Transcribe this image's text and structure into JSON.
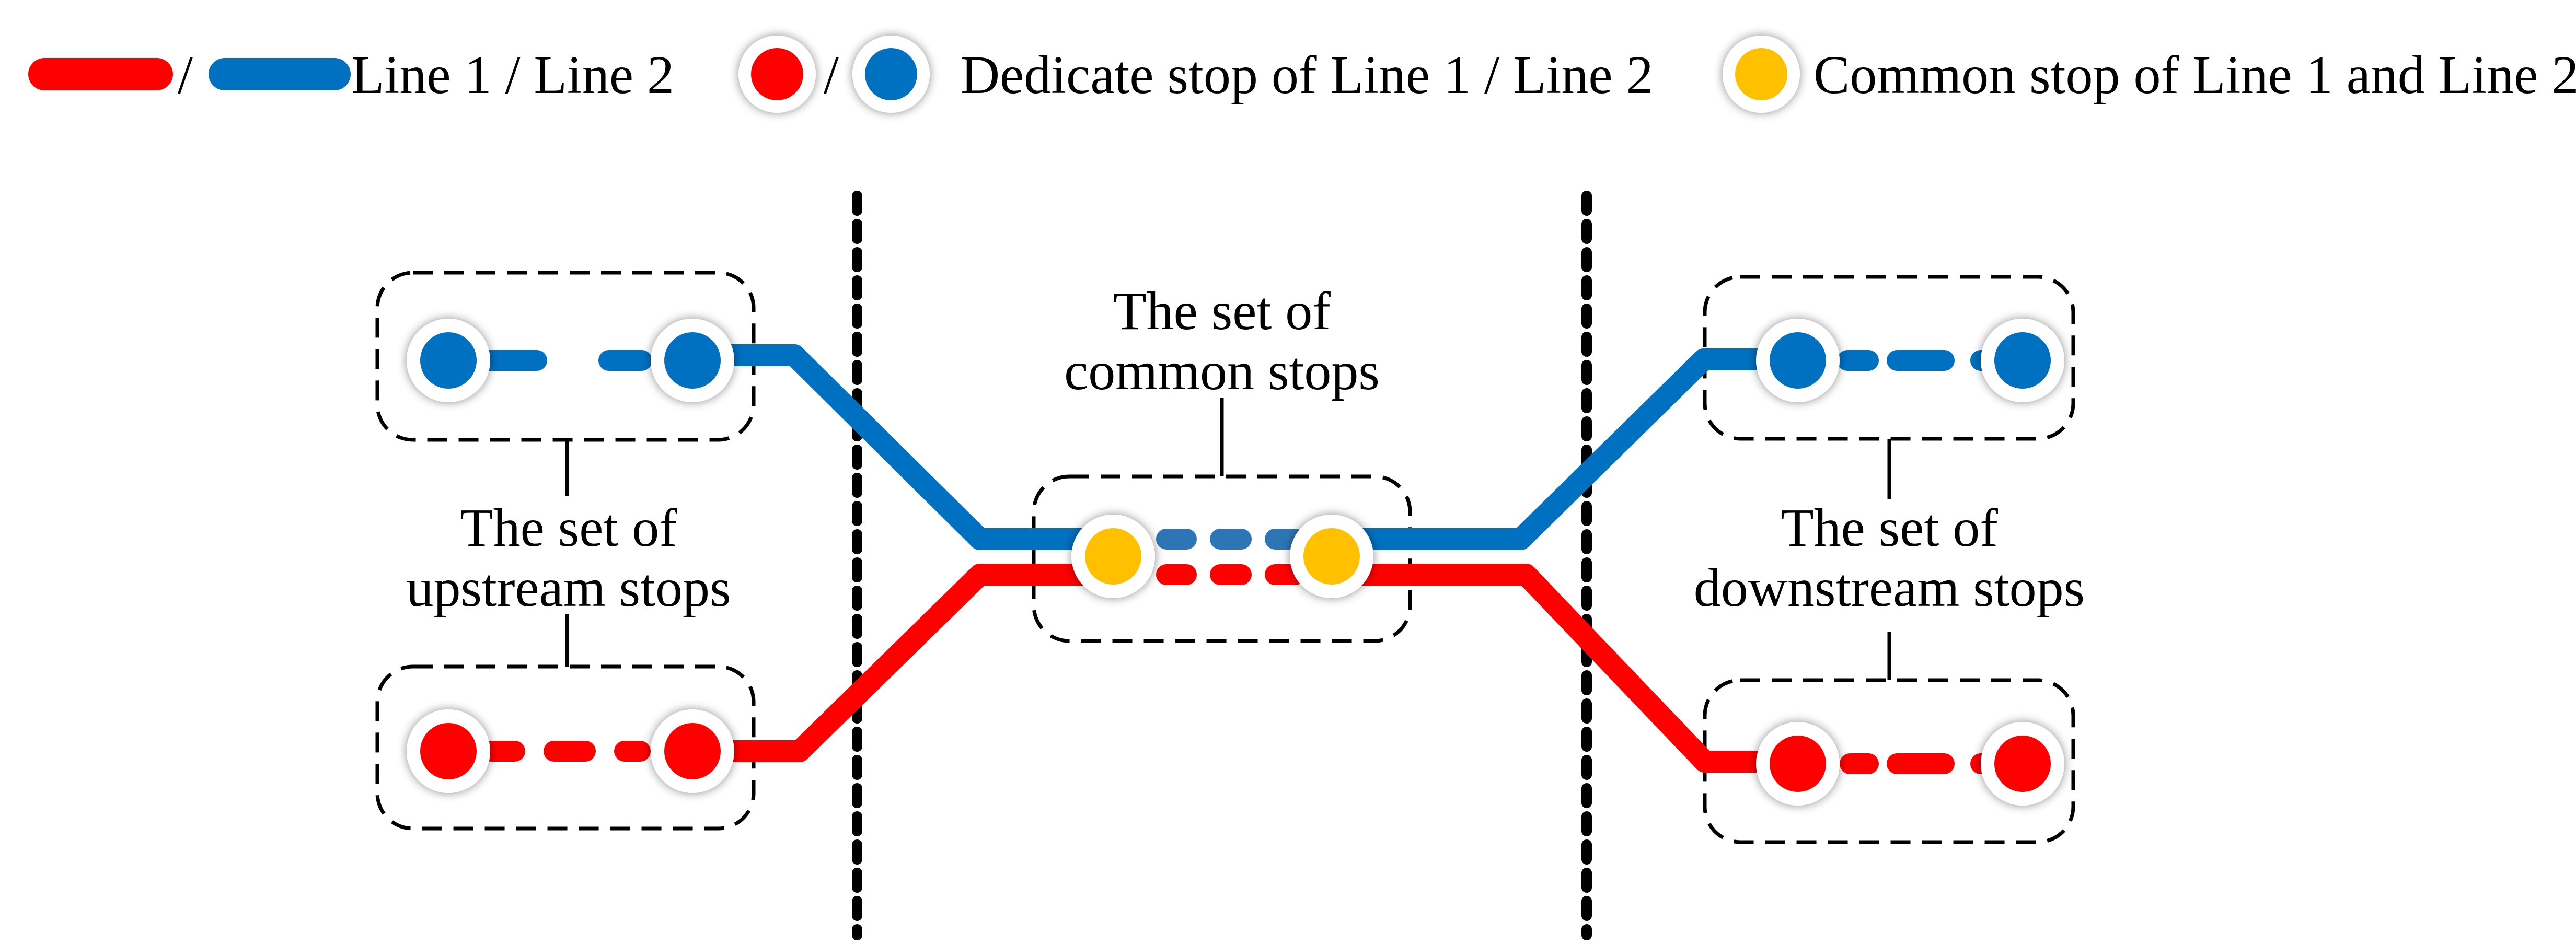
{
  "legend": {
    "slash": "/",
    "lines_label": "Line 1 / Line 2",
    "dedicated_label": "Dedicate stop of Line 1 / Line 2",
    "common_label": "Common stop of Line 1 and Line 2"
  },
  "groups": {
    "upstream": {
      "line1": "The set of",
      "line2": "upstream stops"
    },
    "common": {
      "line1": "The set of",
      "line2": "common stops"
    },
    "downstream": {
      "line1": "The set of",
      "line2": "downstream stops"
    }
  },
  "colors": {
    "line1": "#ff0000",
    "line2": "#0070c0",
    "common_stop": "#ffc000",
    "divider": "#000000"
  }
}
